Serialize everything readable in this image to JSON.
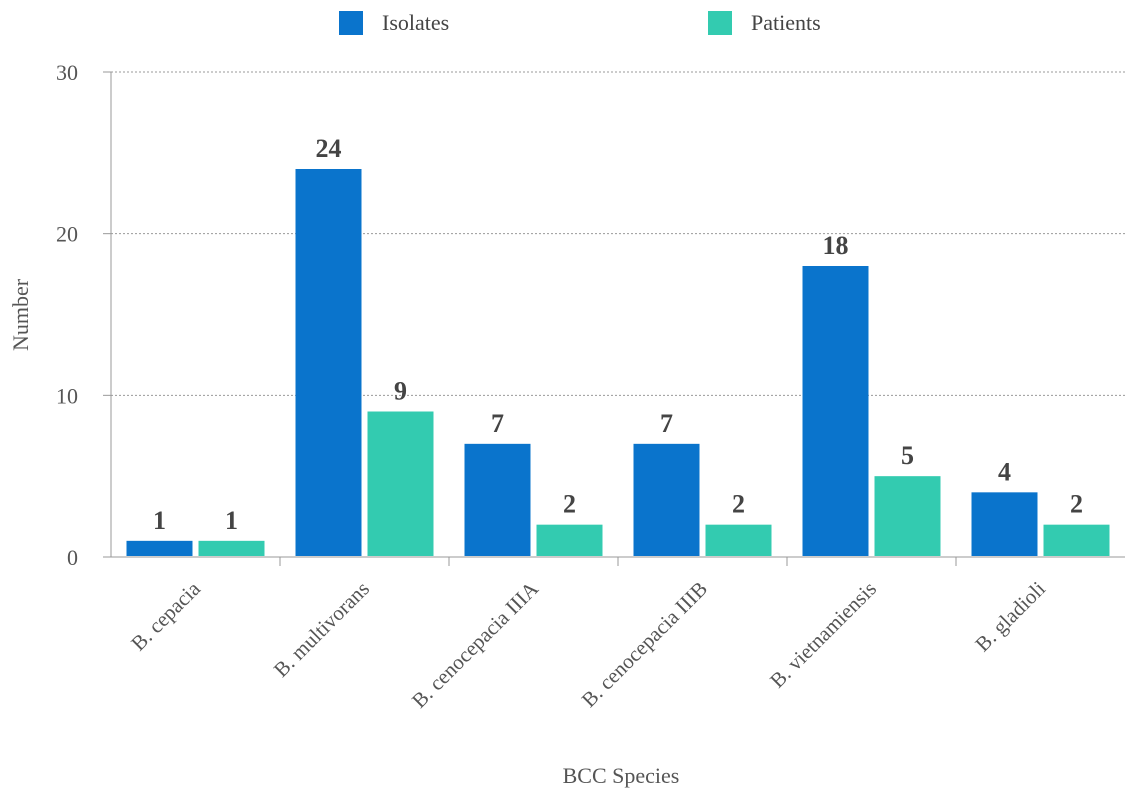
{
  "chart_data": {
    "type": "bar",
    "categories": [
      "B. cepacia",
      "B. multivorans",
      "B. cenocepacia IIIA",
      "B. cenocepacia IIIB",
      "B. vietnamiensis",
      "B. gladioli"
    ],
    "series": [
      {
        "name": "Isolates",
        "values": [
          1,
          24,
          7,
          7,
          18,
          4
        ],
        "color": "#0a74cc"
      },
      {
        "name": "Patients",
        "values": [
          1,
          9,
          2,
          2,
          5,
          2
        ],
        "color": "#33cbb0"
      }
    ],
    "xlabel": "BCC Species",
    "ylabel": "Number",
    "ylim": [
      0,
      30
    ],
    "yticks": [
      0,
      10,
      20,
      30
    ],
    "grid": true,
    "legend": "top-center",
    "data_labels": true
  }
}
